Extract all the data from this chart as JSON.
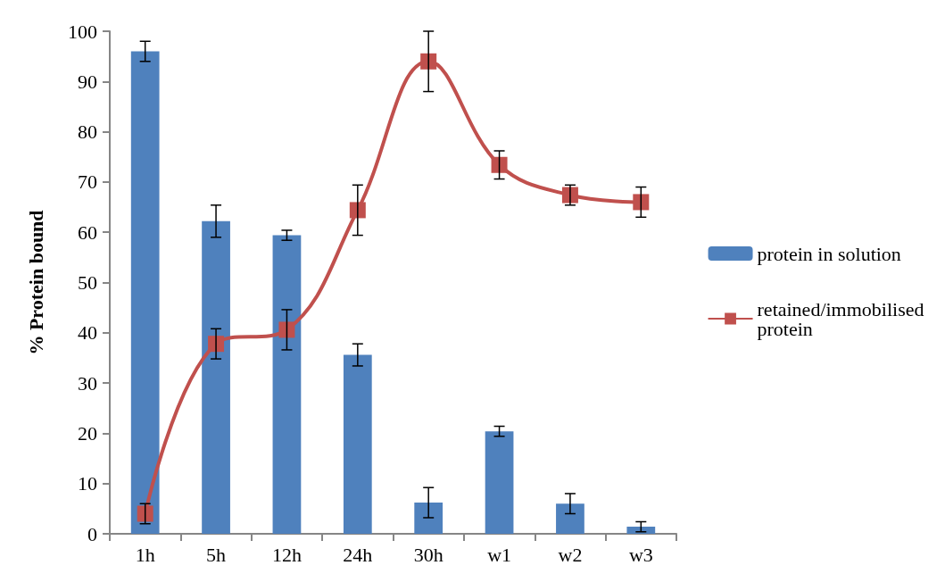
{
  "chart_data": {
    "type": "bar",
    "ylabel": "% Protein bound",
    "categories": [
      "1h",
      "5h",
      "12h",
      "24h",
      "30h",
      "w1",
      "w2",
      "w3"
    ],
    "series": [
      {
        "name": "protein in solution",
        "color": "#4f81bd",
        "values": [
          96,
          62.2,
          59.4,
          35.6,
          6.2,
          20.4,
          6,
          1.4
        ],
        "errors": [
          2,
          3.2,
          1,
          2.2,
          3,
          1,
          2,
          1
        ]
      },
      {
        "name": "retained/immobilised protein",
        "type": "line",
        "color": "#c0504d",
        "values": [
          4,
          37.8,
          40.6,
          64.4,
          94,
          73.4,
          67.4,
          66
        ],
        "errors": [
          2,
          3,
          4,
          5,
          6,
          2.8,
          2,
          3
        ]
      }
    ],
    "ylim": [
      0,
      100
    ],
    "yticks": [
      0,
      10,
      20,
      30,
      40,
      50,
      60,
      70,
      80,
      90,
      100
    ],
    "grid": false,
    "legend": "right",
    "marker": "square",
    "line_style": "solid"
  }
}
